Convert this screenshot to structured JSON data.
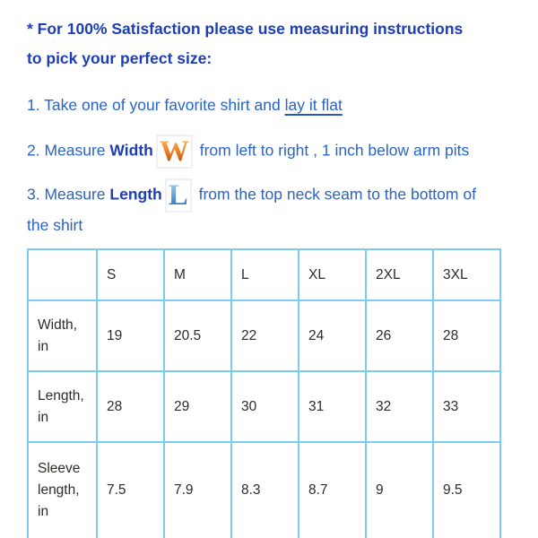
{
  "colors": {
    "heading_blue": "#1d3eb4",
    "body_blue": "#2a64c9",
    "table_border": "#7accf3",
    "table_text": "#2e2b28",
    "w_icon_gradient_top": "#fbd08a",
    "w_icon_gradient_bottom": "#a33312",
    "l_icon_gradient_top": "#aedcf5",
    "l_icon_gradient_bottom": "#1a5cae"
  },
  "intro": {
    "line1": "* For 100% Satisfaction please use measuring instructions",
    "line2": "to pick your perfect size:"
  },
  "steps": {
    "step1": {
      "text": "1. Take one of your favorite shirt and ",
      "underlined": "lay it flat"
    },
    "step2": {
      "prefix": "2. Measure ",
      "keyword": "Width",
      "icon_glyph": "W",
      "suffix": " from left to right , 1 inch below arm pits"
    },
    "step3": {
      "prefix": "3. Measure ",
      "keyword": "Length",
      "icon_glyph": "L",
      "suffix": " from the top neck seam to the bottom of",
      "continuation": "the shirt"
    }
  },
  "size_table": {
    "columns": [
      "",
      "S",
      "M",
      "L",
      "XL",
      "2XL",
      "3XL"
    ],
    "rows": [
      {
        "label": "Width, in",
        "values": [
          "19",
          "20.5",
          "22",
          "24",
          "26",
          "28"
        ]
      },
      {
        "label": "Length, in",
        "values": [
          "28",
          "29",
          "30",
          "31",
          "32",
          "33"
        ]
      },
      {
        "label": "Sleeve length, in",
        "values": [
          "7.5",
          "7.9",
          "8.3",
          "8.7",
          "9",
          "9.5"
        ]
      }
    ]
  }
}
